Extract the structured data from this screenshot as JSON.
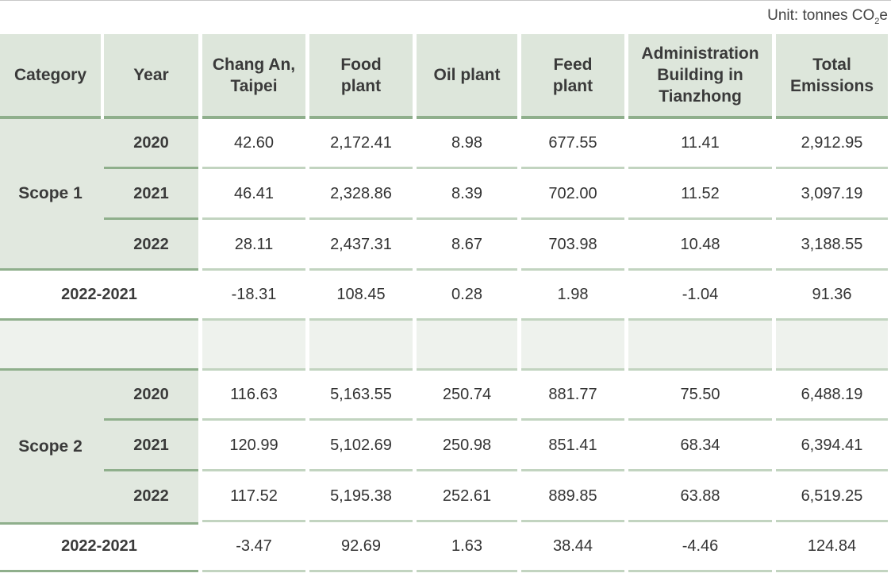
{
  "unit": {
    "prefix": "Unit: tonnes CO",
    "sub": "2",
    "suffix": "e"
  },
  "headers": {
    "category": "Category",
    "year": "Year",
    "changan": "Chang An, Taipei",
    "food": "Food plant",
    "oil": "Oil plant",
    "feed": "Feed plant",
    "admin": "Administration Building in Tianzhong",
    "total": "Total Emissions"
  },
  "scope1": {
    "label": "Scope 1",
    "rows": [
      {
        "year": "2020",
        "v": [
          "42.60",
          "2,172.41",
          "8.98",
          "677.55",
          "11.41",
          "2,912.95"
        ]
      },
      {
        "year": "2021",
        "v": [
          "46.41",
          "2,328.86",
          "8.39",
          "702.00",
          "11.52",
          "3,097.19"
        ]
      },
      {
        "year": "2022",
        "v": [
          "28.11",
          "2,437.31",
          "8.67",
          "703.98",
          "10.48",
          "3,188.55"
        ]
      }
    ],
    "diff": {
      "label": "2022-2021",
      "v": [
        "-18.31",
        "108.45",
        "0.28",
        "1.98",
        "-1.04",
        "91.36"
      ]
    }
  },
  "scope2": {
    "label": "Scope 2",
    "rows": [
      {
        "year": "2020",
        "v": [
          "116.63",
          "5,163.55",
          "250.74",
          "881.77",
          "75.50",
          "6,488.19"
        ]
      },
      {
        "year": "2021",
        "v": [
          "120.99",
          "5,102.69",
          "250.98",
          "851.41",
          "68.34",
          "6,394.41"
        ]
      },
      {
        "year": "2022",
        "v": [
          "117.52",
          "5,195.38",
          "252.61",
          "889.85",
          "63.88",
          "6,519.25"
        ]
      }
    ],
    "diff": {
      "label": "2022-2021",
      "v": [
        "-3.47",
        "92.69",
        "1.63",
        "38.44",
        "-4.46",
        "124.84"
      ]
    }
  }
}
